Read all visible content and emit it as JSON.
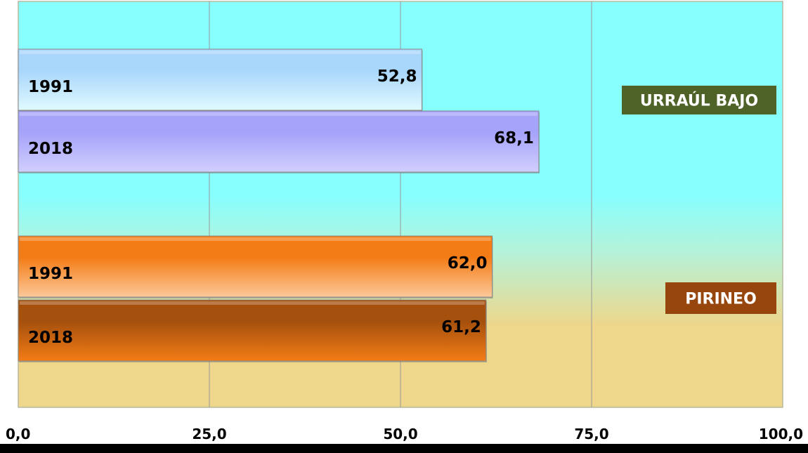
{
  "chart_data": {
    "type": "bar",
    "orientation": "horizontal",
    "xlim": [
      0,
      100
    ],
    "x_ticks": [
      "0,0",
      "25,0",
      "50,0",
      "75,0",
      "100,0"
    ],
    "x_tick_values": [
      0,
      25,
      50,
      75,
      100
    ],
    "grid": true,
    "groups": [
      {
        "name": "URRAÚL BAJO",
        "color": "#4F6228",
        "bars": [
          {
            "label": "1991",
            "value": 52.8,
            "value_label": "52,8",
            "color_top": "#A9D6FB",
            "color_bottom": "#E0FAFF"
          },
          {
            "label": "2018",
            "value": 68.1,
            "value_label": "68,1",
            "color_top": "#A6A3FB",
            "color_bottom": "#D1CFFD"
          }
        ]
      },
      {
        "name": "PIRINEO",
        "color": "#97470D",
        "bars": [
          {
            "label": "1991",
            "value": 62.0,
            "value_label": "62,0",
            "color_top": "#F47C16",
            "color_bottom": "#FCC89A"
          },
          {
            "label": "2018",
            "value": 61.2,
            "value_label": "61,2",
            "color_top": "#A5500D",
            "color_bottom": "#F47C16"
          }
        ]
      }
    ]
  }
}
